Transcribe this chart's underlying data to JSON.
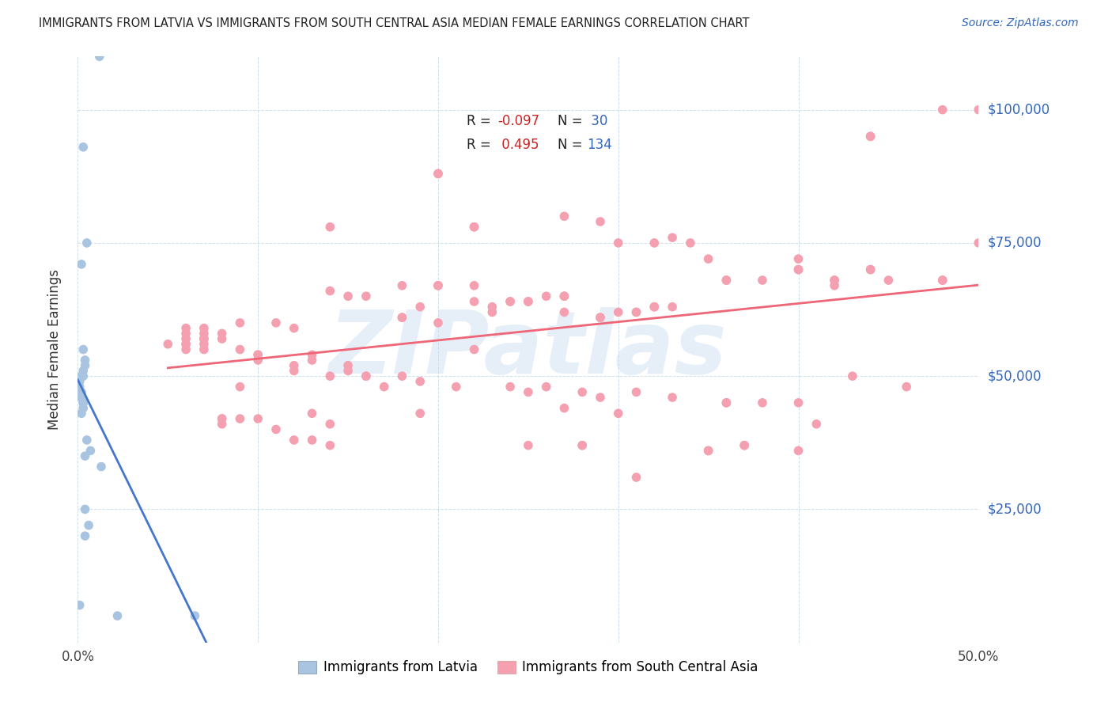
{
  "title": "IMMIGRANTS FROM LATVIA VS IMMIGRANTS FROM SOUTH CENTRAL ASIA MEDIAN FEMALE EARNINGS CORRELATION CHART",
  "source": "Source: ZipAtlas.com",
  "ylabel": "Median Female Earnings",
  "xlim": [
    0.0,
    0.5
  ],
  "ylim": [
    0,
    110000
  ],
  "yticks": [
    0,
    25000,
    50000,
    75000,
    100000
  ],
  "ytick_labels": [
    "",
    "$25,000",
    "$50,000",
    "$75,000",
    "$100,000"
  ],
  "xticks": [
    0.0,
    0.1,
    0.2,
    0.3,
    0.4,
    0.5
  ],
  "xtick_labels": [
    "0.0%",
    "",
    "",
    "",
    "",
    "50.0%"
  ],
  "color_latvia": "#a8c4e0",
  "color_sca": "#f4a0b0",
  "color_latvia_line": "#4477cc",
  "color_sca_line": "#ee6677",
  "color_latvia_dash": "#aabbdd",
  "watermark": "ZIPatlas",
  "latvia_x": [
    0.003,
    0.005,
    0.012,
    0.002,
    0.003,
    0.004,
    0.004,
    0.003,
    0.003,
    0.002,
    0.001,
    0.001,
    0.001,
    0.002,
    0.002,
    0.002,
    0.003,
    0.003,
    0.003,
    0.002,
    0.005,
    0.007,
    0.004,
    0.013,
    0.004,
    0.006,
    0.004,
    0.022,
    0.065,
    0.001
  ],
  "latvia_y": [
    93000,
    75000,
    110000,
    71000,
    55000,
    53000,
    52000,
    51000,
    50000,
    50000,
    49000,
    48000,
    47000,
    47000,
    46000,
    46000,
    45000,
    45000,
    44000,
    43000,
    38000,
    36000,
    35000,
    33000,
    25000,
    22000,
    20000,
    5000,
    5000,
    7000
  ],
  "sca_x": [
    0.05,
    0.06,
    0.06,
    0.06,
    0.06,
    0.06,
    0.07,
    0.07,
    0.07,
    0.07,
    0.07,
    0.07,
    0.08,
    0.08,
    0.08,
    0.08,
    0.09,
    0.09,
    0.09,
    0.1,
    0.1,
    0.1,
    0.11,
    0.11,
    0.12,
    0.12,
    0.12,
    0.13,
    0.13,
    0.13,
    0.13,
    0.14,
    0.14,
    0.14,
    0.14,
    0.15,
    0.15,
    0.15,
    0.16,
    0.16,
    0.17,
    0.18,
    0.18,
    0.18,
    0.19,
    0.19,
    0.19,
    0.2,
    0.2,
    0.2,
    0.21,
    0.22,
    0.22,
    0.22,
    0.22,
    0.23,
    0.23,
    0.24,
    0.24,
    0.25,
    0.25,
    0.25,
    0.26,
    0.26,
    0.27,
    0.27,
    0.27,
    0.27,
    0.28,
    0.28,
    0.29,
    0.29,
    0.29,
    0.3,
    0.3,
    0.3,
    0.31,
    0.31,
    0.31,
    0.32,
    0.32,
    0.33,
    0.33,
    0.34,
    0.35,
    0.35,
    0.36,
    0.36,
    0.36,
    0.37,
    0.38,
    0.38,
    0.4,
    0.4,
    0.4,
    0.41,
    0.42,
    0.42,
    0.43,
    0.44,
    0.44,
    0.45,
    0.48,
    0.5,
    0.07,
    0.09,
    0.14,
    0.2,
    0.22,
    0.25,
    0.27,
    0.29,
    0.31,
    0.33,
    0.35,
    0.37,
    0.4,
    0.42,
    0.44,
    0.46,
    0.48,
    0.5,
    0.06,
    0.08,
    0.1,
    0.12,
    0.16,
    0.18,
    0.2,
    0.24,
    0.28,
    0.32,
    0.36,
    0.4,
    0.44,
    0.48
  ],
  "sca_y": [
    56000,
    58000,
    55000,
    57000,
    59000,
    56000,
    57000,
    58000,
    56000,
    57000,
    55000,
    59000,
    57000,
    58000,
    42000,
    41000,
    60000,
    55000,
    42000,
    54000,
    53000,
    42000,
    60000,
    40000,
    51000,
    52000,
    38000,
    53000,
    54000,
    43000,
    38000,
    50000,
    41000,
    37000,
    66000,
    52000,
    51000,
    65000,
    50000,
    65000,
    48000,
    61000,
    50000,
    67000,
    63000,
    49000,
    43000,
    60000,
    67000,
    88000,
    48000,
    64000,
    67000,
    78000,
    78000,
    62000,
    63000,
    64000,
    48000,
    47000,
    64000,
    37000,
    48000,
    65000,
    62000,
    44000,
    65000,
    80000,
    47000,
    37000,
    61000,
    79000,
    46000,
    43000,
    62000,
    75000,
    47000,
    62000,
    31000,
    63000,
    75000,
    46000,
    76000,
    75000,
    36000,
    72000,
    45000,
    68000,
    45000,
    37000,
    45000,
    68000,
    45000,
    70000,
    36000,
    41000,
    68000,
    67000,
    50000,
    70000,
    95000,
    68000,
    68000,
    100000,
    57000,
    48000,
    78000,
    67000,
    55000,
    64000,
    65000,
    61000,
    62000,
    63000,
    36000,
    37000,
    72000,
    68000,
    70000,
    48000,
    68000,
    75000,
    56000,
    42000,
    54000,
    59000,
    50000,
    61000,
    88000,
    64000,
    37000,
    63000,
    68000,
    70000,
    95000,
    100000
  ]
}
